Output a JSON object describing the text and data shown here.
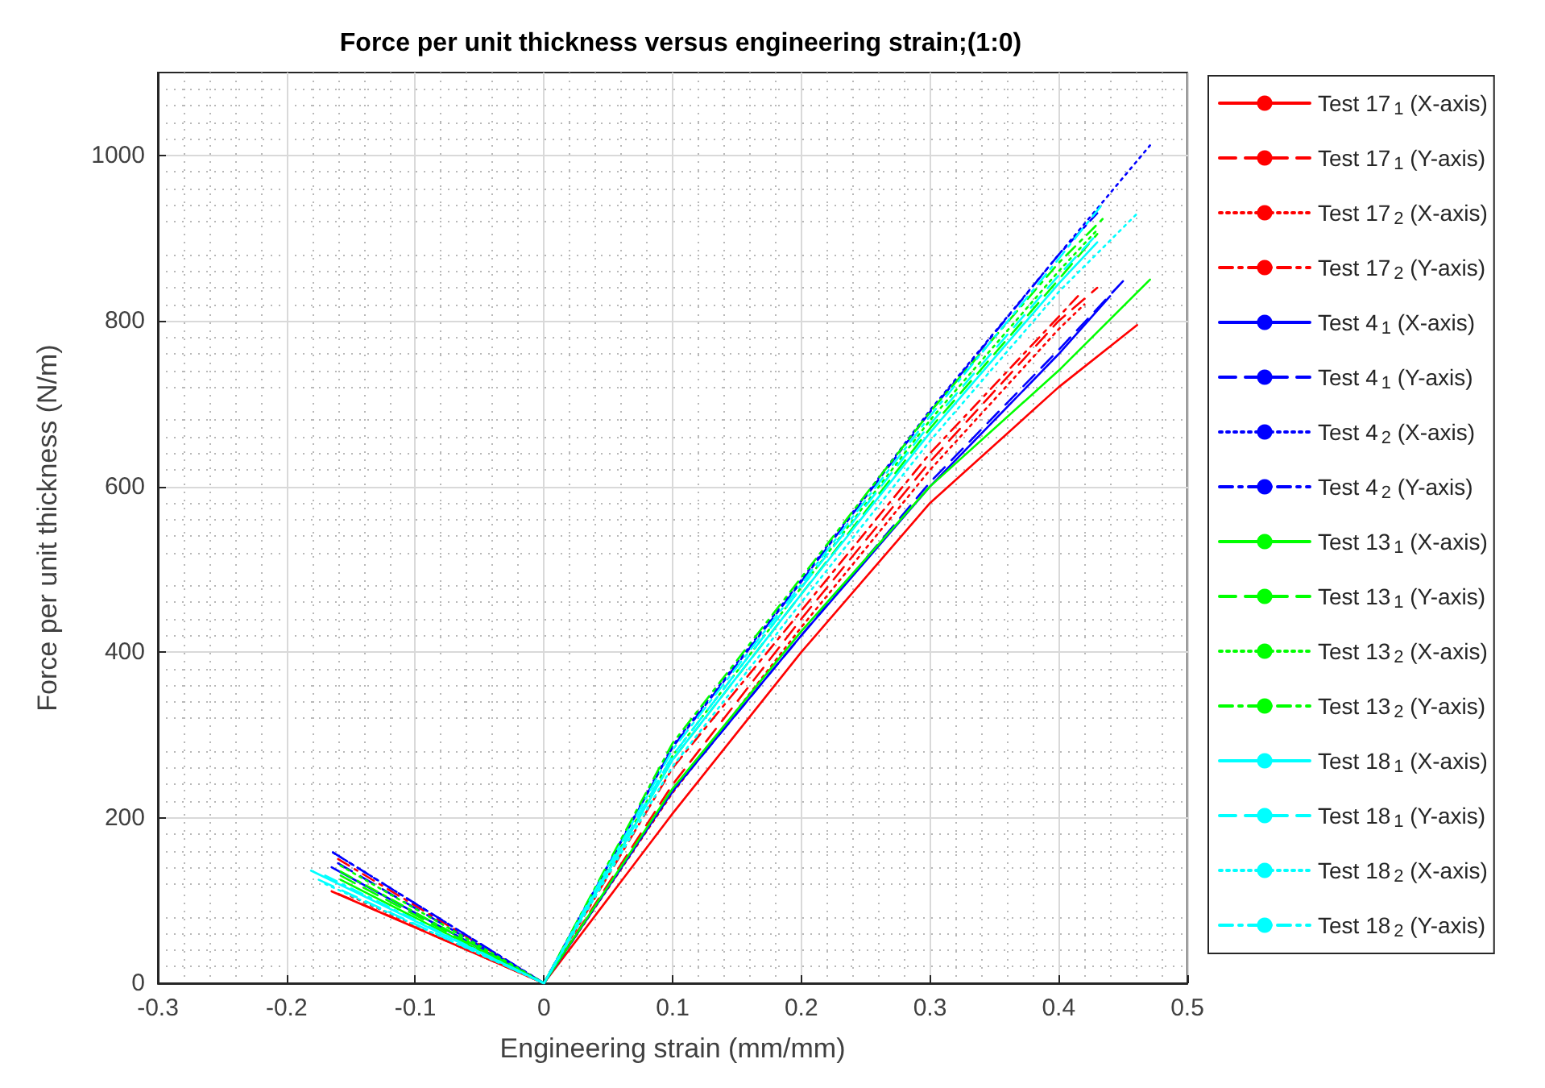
{
  "chart_data": {
    "type": "line",
    "title": "Force per unit thickness versus engineering strain;(1:0)",
    "xlabel": "Engineering strain (mm/mm)",
    "ylabel": "Force per unit thickness (N/m)",
    "xlim": [
      -0.3,
      0.5
    ],
    "xticks": [
      -0.3,
      -0.2,
      -0.1,
      0,
      0.1,
      0.2,
      0.3,
      0.4,
      0.5
    ],
    "ylim": [
      0,
      1100
    ],
    "yticks": [
      0,
      200,
      400,
      600,
      800,
      1000
    ],
    "grid": true,
    "legend": "right",
    "marker": "none",
    "series": [
      {
        "name": "Test 17$_{1}$ (X-axis)",
        "color": "#ff0000",
        "line_style": "solid",
        "x": [
          -0.165,
          0,
          0.1,
          0.2,
          0.3,
          0.4,
          0.461
        ],
        "values": [
          111,
          0,
          205,
          400,
          580,
          720,
          795
        ]
      },
      {
        "name": "Test 17$_{1}$ (Y-axis)",
        "color": "#ff0000",
        "line_style": "dashed",
        "x": [
          -0.16,
          0,
          0.1,
          0.2,
          0.3,
          0.4,
          0.43
        ],
        "values": [
          108,
          0,
          240,
          440,
          630,
          800,
          840
        ]
      },
      {
        "name": "Test 17$_{2}$ (X-axis)",
        "color": "#ff0000",
        "line_style": "dotted",
        "x": [
          -0.15,
          0,
          0.1,
          0.2,
          0.3,
          0.4,
          0.42
        ],
        "values": [
          105,
          0,
          230,
          430,
          620,
          790,
          820
        ]
      },
      {
        "name": "Test 17$_{2}$ (Y-axis)",
        "color": "#ff0000",
        "line_style": "dashdot",
        "x": [
          -0.16,
          0,
          0.1,
          0.2,
          0.3,
          0.4,
          0.415
        ],
        "values": [
          150,
          0,
          260,
          450,
          640,
          805,
          830
        ]
      },
      {
        "name": "Test 4$_{1}$ (X-axis)",
        "color": "#0000ff",
        "line_style": "solid",
        "x": [
          -0.165,
          0,
          0.1,
          0.2,
          0.3,
          0.4,
          0.44
        ],
        "values": [
          140,
          0,
          232,
          420,
          600,
          760,
          830
        ]
      },
      {
        "name": "Test 4$_{1}$ (Y-axis)",
        "color": "#0000ff",
        "line_style": "dashed",
        "x": [
          -0.16,
          0,
          0.1,
          0.2,
          0.3,
          0.4,
          0.45
        ],
        "values": [
          145,
          0,
          232,
          420,
          605,
          765,
          848
        ]
      },
      {
        "name": "Test 4$_{2}$ (X-axis)",
        "color": "#0000ff",
        "line_style": "dotted",
        "x": [
          -0.164,
          0,
          0.1,
          0.2,
          0.3,
          0.4,
          0.471
        ],
        "values": [
          158,
          0,
          287,
          487,
          692,
          880,
          1012
        ]
      },
      {
        "name": "Test 4$_{2}$ (Y-axis)",
        "color": "#0000ff",
        "line_style": "dashdot",
        "x": [
          -0.164,
          0,
          0.1,
          0.2,
          0.3,
          0.4,
          0.43
        ],
        "values": [
          158,
          0,
          285,
          485,
          690,
          880,
          930
        ]
      },
      {
        "name": "Test 13$_{1}$ (X-axis)",
        "color": "#00ff00",
        "line_style": "solid",
        "x": [
          -0.158,
          0,
          0.1,
          0.2,
          0.3,
          0.4,
          0.471
        ],
        "values": [
          125,
          0,
          235,
          425,
          600,
          740,
          850
        ]
      },
      {
        "name": "Test 13$_{1}$ (Y-axis)",
        "color": "#00ff00",
        "line_style": "dashed",
        "x": [
          -0.158,
          0,
          0.1,
          0.2,
          0.3,
          0.4,
          0.43
        ],
        "values": [
          130,
          0,
          270,
          470,
          670,
          850,
          905
        ]
      },
      {
        "name": "Test 13$_{2}$ (X-axis)",
        "color": "#00ff00",
        "line_style": "dotted",
        "x": [
          -0.158,
          0,
          0.1,
          0.2,
          0.3,
          0.4,
          0.43
        ],
        "values": [
          142,
          0,
          275,
          478,
          680,
          860,
          910
        ]
      },
      {
        "name": "Test 13$_{2}$ (Y-axis)",
        "color": "#00ff00",
        "line_style": "dashdot",
        "x": [
          -0.158,
          0,
          0.1,
          0.2,
          0.3,
          0.4,
          0.436
        ],
        "values": [
          135,
          0,
          290,
          490,
          690,
          870,
          926
        ]
      },
      {
        "name": "Test 18$_{1}$ (X-axis)",
        "color": "#00ffff",
        "line_style": "solid",
        "x": [
          -0.181,
          0,
          0.1,
          0.2,
          0.3,
          0.4,
          0.43
        ],
        "values": [
          136,
          0,
          270,
          470,
          665,
          845,
          895
        ]
      },
      {
        "name": "Test 18$_{1}$ (Y-axis)",
        "color": "#00ffff",
        "line_style": "dashed",
        "x": [
          -0.175,
          0,
          0.1,
          0.2,
          0.3,
          0.4,
          0.43
        ],
        "values": [
          125,
          0,
          275,
          478,
          675,
          855,
          905
        ]
      },
      {
        "name": "Test 18$_{2}$ (X-axis)",
        "color": "#00ffff",
        "line_style": "dotted",
        "x": [
          -0.17,
          0,
          0.1,
          0.2,
          0.3,
          0.4,
          0.4625
        ],
        "values": [
          120,
          0,
          262,
          460,
          655,
          835,
          932
        ]
      },
      {
        "name": "Test 18$_{2}$ (Y-axis)",
        "color": "#00ffff",
        "line_style": "dashdot",
        "x": [
          -0.17,
          0,
          0.1,
          0.2,
          0.3,
          0.4,
          0.434
        ],
        "values": [
          130,
          0,
          282,
          482,
          685,
          875,
          941
        ]
      }
    ]
  }
}
